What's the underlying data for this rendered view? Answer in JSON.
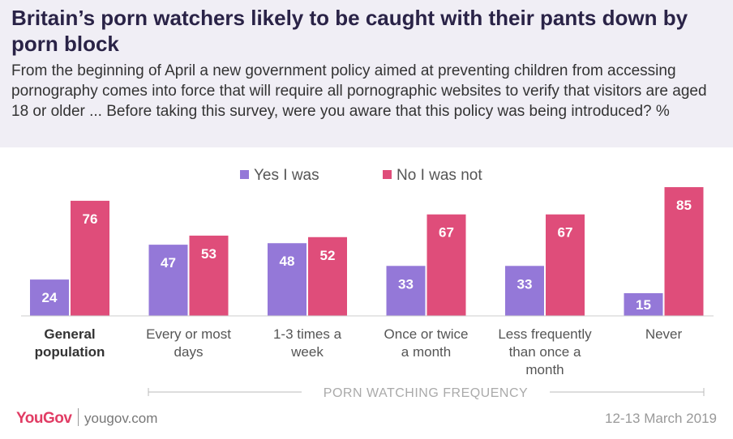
{
  "title": "Britain’s porn watchers likely to be caught with their pants down by porn block",
  "subtitle": "From the beginning of April a new government policy aimed at preventing children from accessing pornography comes into force that will require all pornographic websites to verify that visitors are aged 18 or older ... Before taking this survey, were you aware that this policy was being introduced? %",
  "section_label": "PORN WATCHING FREQUENCY",
  "footer": {
    "logo": "YouGov",
    "url": "yougov.com",
    "date": "12-13 March 2019"
  },
  "colors": {
    "yes": "#9478d8",
    "no": "#df4d7a",
    "header_bg": "#f0eef5",
    "brand": "#e13c64"
  },
  "chart_data": {
    "type": "bar",
    "title": "Britain’s porn watchers likely to be caught with their pants down by porn block",
    "xlabel": "PORN WATCHING FREQUENCY",
    "ylabel": "%",
    "ylim": [
      0,
      100
    ],
    "grid": false,
    "legend_position": "top-center",
    "categories": [
      [
        "General",
        "population"
      ],
      [
        "Every or most",
        "days"
      ],
      [
        "1-3 times a",
        "week"
      ],
      [
        "Once or twice",
        "a month"
      ],
      [
        "Less frequently",
        "than once a",
        "month"
      ],
      [
        "Never"
      ]
    ],
    "bold_categories": [
      0
    ],
    "series": [
      {
        "name": "Yes I was",
        "color": "#9478d8",
        "values": [
          24,
          47,
          48,
          33,
          33,
          15
        ]
      },
      {
        "name": "No I was not",
        "color": "#df4d7a",
        "values": [
          76,
          53,
          52,
          67,
          67,
          85
        ]
      }
    ]
  }
}
